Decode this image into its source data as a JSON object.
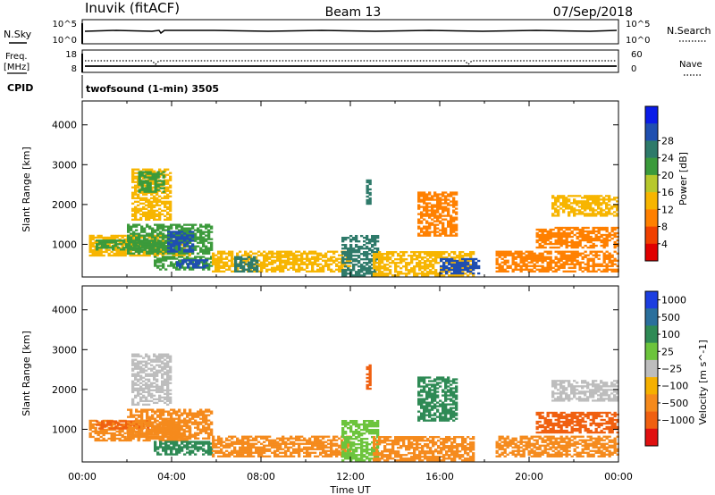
{
  "header": {
    "station": "Inuvik (fitACF)",
    "beam": "Beam 13",
    "date": "07/Sep/2018"
  },
  "top_panel": {
    "left_label": "N.Sky",
    "right_label": "N.Search",
    "left_ticks": [
      "10^5",
      "10^0"
    ],
    "right_ticks": [
      "10^5",
      "10^0"
    ]
  },
  "freq_panel": {
    "left_label_1": "Freq.",
    "left_label_2": "[MHz]",
    "right_label": "Nave",
    "left_ticks": [
      "18",
      "8"
    ],
    "right_ticks": [
      "60",
      "0"
    ]
  },
  "cpid": {
    "label": "CPID",
    "text": "twofsound (1-min) 3505"
  },
  "colors": {
    "power_scale": [
      "#0a1ce8",
      "#1f4fb0",
      "#2e7a6a",
      "#3b9a3b",
      "#b7c82c",
      "#f7b500",
      "#ff8000",
      "#f04000",
      "#e00000"
    ],
    "velocity_scale": [
      "#1c3ee0",
      "#2a6f9c",
      "#2e8a55",
      "#6cc43c",
      "#bdbdbd",
      "#f5b000",
      "#f58a1c",
      "#f06010",
      "#e01010"
    ]
  },
  "chart_data": [
    {
      "type": "heatmap",
      "title": "Power",
      "xlabel": "Time UT",
      "ylabel": "Slant Range [km]",
      "x_ticks": [
        "00:00",
        "04:00",
        "08:00",
        "12:00",
        "16:00",
        "20:00",
        "00:00"
      ],
      "y_ticks": [
        "1000",
        "2000",
        "3000",
        "4000"
      ],
      "ylim": [
        180,
        4600
      ],
      "colorbar": {
        "label": "Power [dB]",
        "ticks": [
          "4",
          "8",
          "12",
          "16",
          "20",
          "24",
          "28"
        ],
        "range": [
          0,
          32
        ]
      },
      "regions": [
        {
          "t": [
            0.3,
            4.8
          ],
          "r": [
            700,
            1200
          ],
          "v": 14
        },
        {
          "t": [
            0.6,
            4.4
          ],
          "r": [
            850,
            1100
          ],
          "v": 20
        },
        {
          "t": [
            2.0,
            5.8
          ],
          "r": [
            750,
            1500
          ],
          "v": 18
        },
        {
          "t": [
            3.8,
            5.0
          ],
          "r": [
            800,
            1300
          ],
          "v": 27
        },
        {
          "t": [
            2.2,
            3.9
          ],
          "r": [
            1600,
            2900
          ],
          "v": 12
        },
        {
          "t": [
            2.5,
            3.7
          ],
          "r": [
            2300,
            2800
          ],
          "v": 18
        },
        {
          "t": [
            3.2,
            5.8
          ],
          "r": [
            350,
            700
          ],
          "v": 18
        },
        {
          "t": [
            4.2,
            5.6
          ],
          "r": [
            400,
            600
          ],
          "v": 25
        },
        {
          "t": [
            5.8,
            12.0
          ],
          "r": [
            300,
            800
          ],
          "v": 14
        },
        {
          "t": [
            6.8,
            7.8
          ],
          "r": [
            300,
            700
          ],
          "v": 22
        },
        {
          "t": [
            11.6,
            13.2
          ],
          "r": [
            200,
            1200
          ],
          "v": 22
        },
        {
          "t": [
            12.7,
            12.9
          ],
          "r": [
            2000,
            2600
          ],
          "v": 22
        },
        {
          "t": [
            13.0,
            17.5
          ],
          "r": [
            200,
            800
          ],
          "v": 13
        },
        {
          "t": [
            15.0,
            16.8
          ],
          "r": [
            1200,
            2300
          ],
          "v": 9
        },
        {
          "t": [
            16.0,
            17.8
          ],
          "r": [
            250,
            650
          ],
          "v": 26
        },
        {
          "t": [
            18.5,
            24.0
          ],
          "r": [
            300,
            800
          ],
          "v": 10
        },
        {
          "t": [
            20.3,
            24.0
          ],
          "r": [
            900,
            1400
          ],
          "v": 10
        },
        {
          "t": [
            21.0,
            24.0
          ],
          "r": [
            1700,
            2200
          ],
          "v": 12
        }
      ]
    },
    {
      "type": "heatmap",
      "title": "Velocity",
      "xlabel": "Time UT",
      "ylabel": "Slant Range [km]",
      "x_ticks": [
        "00:00",
        "04:00",
        "08:00",
        "12:00",
        "16:00",
        "20:00",
        "00:00"
      ],
      "y_ticks": [
        "1000",
        "2000",
        "3000",
        "4000"
      ],
      "ylim": [
        180,
        4600
      ],
      "colorbar": {
        "label": "Velocity [m s^-1]",
        "ticks": [
          "1000",
          "500",
          "100",
          "25",
          "−25",
          "−100",
          "−500",
          "−1000"
        ]
      },
      "regions": [
        {
          "t": [
            0.3,
            4.8
          ],
          "r": [
            700,
            1200
          ],
          "v": -300
        },
        {
          "t": [
            0.6,
            3.0
          ],
          "r": [
            1000,
            1200
          ],
          "v": -700
        },
        {
          "t": [
            2.0,
            5.8
          ],
          "r": [
            750,
            1500
          ],
          "v": -200
        },
        {
          "t": [
            2.2,
            3.9
          ],
          "r": [
            1600,
            2900
          ],
          "v": 0
        },
        {
          "t": [
            3.2,
            5.8
          ],
          "r": [
            350,
            700
          ],
          "v": 150
        },
        {
          "t": [
            5.8,
            12.0
          ],
          "r": [
            300,
            800
          ],
          "v": -150
        },
        {
          "t": [
            11.6,
            13.2
          ],
          "r": [
            200,
            1200
          ],
          "v": 60
        },
        {
          "t": [
            12.7,
            12.9
          ],
          "r": [
            2000,
            2600
          ],
          "v": -700
        },
        {
          "t": [
            13.0,
            17.5
          ],
          "r": [
            200,
            800
          ],
          "v": -300
        },
        {
          "t": [
            15.0,
            16.8
          ],
          "r": [
            1200,
            2300
          ],
          "v": 400
        },
        {
          "t": [
            18.5,
            24.0
          ],
          "r": [
            300,
            800
          ],
          "v": -200
        },
        {
          "t": [
            20.3,
            24.0
          ],
          "r": [
            900,
            1400
          ],
          "v": -700
        },
        {
          "t": [
            21.0,
            24.0
          ],
          "r": [
            1700,
            2200
          ],
          "v": 0
        }
      ]
    }
  ]
}
